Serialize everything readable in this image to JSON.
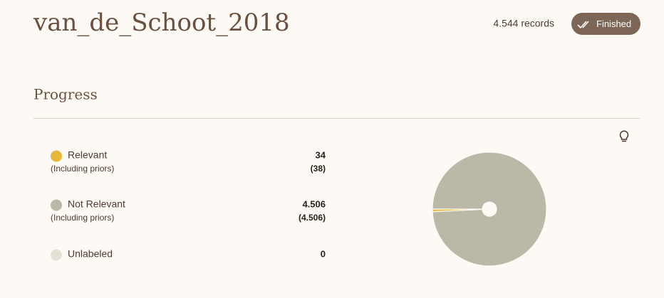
{
  "header": {
    "title": "van_de_Schoot_2018",
    "records": "4.544 records",
    "status": "Finished"
  },
  "progress": {
    "title": "Progress",
    "notes": [
      "(Including priors)",
      "(Including priors)"
    ],
    "priors": [
      "(38)",
      "(4.506)"
    ]
  },
  "chart_data": {
    "type": "pie",
    "categories": [
      "Relevant",
      "Not Relevant",
      "Unlabeled"
    ],
    "values": [
      34,
      4506,
      0
    ],
    "value_labels": [
      "34",
      "4.506",
      "0"
    ],
    "colors": [
      "#e6b93a",
      "#bbb8a8",
      "#e4e1d7"
    ]
  }
}
